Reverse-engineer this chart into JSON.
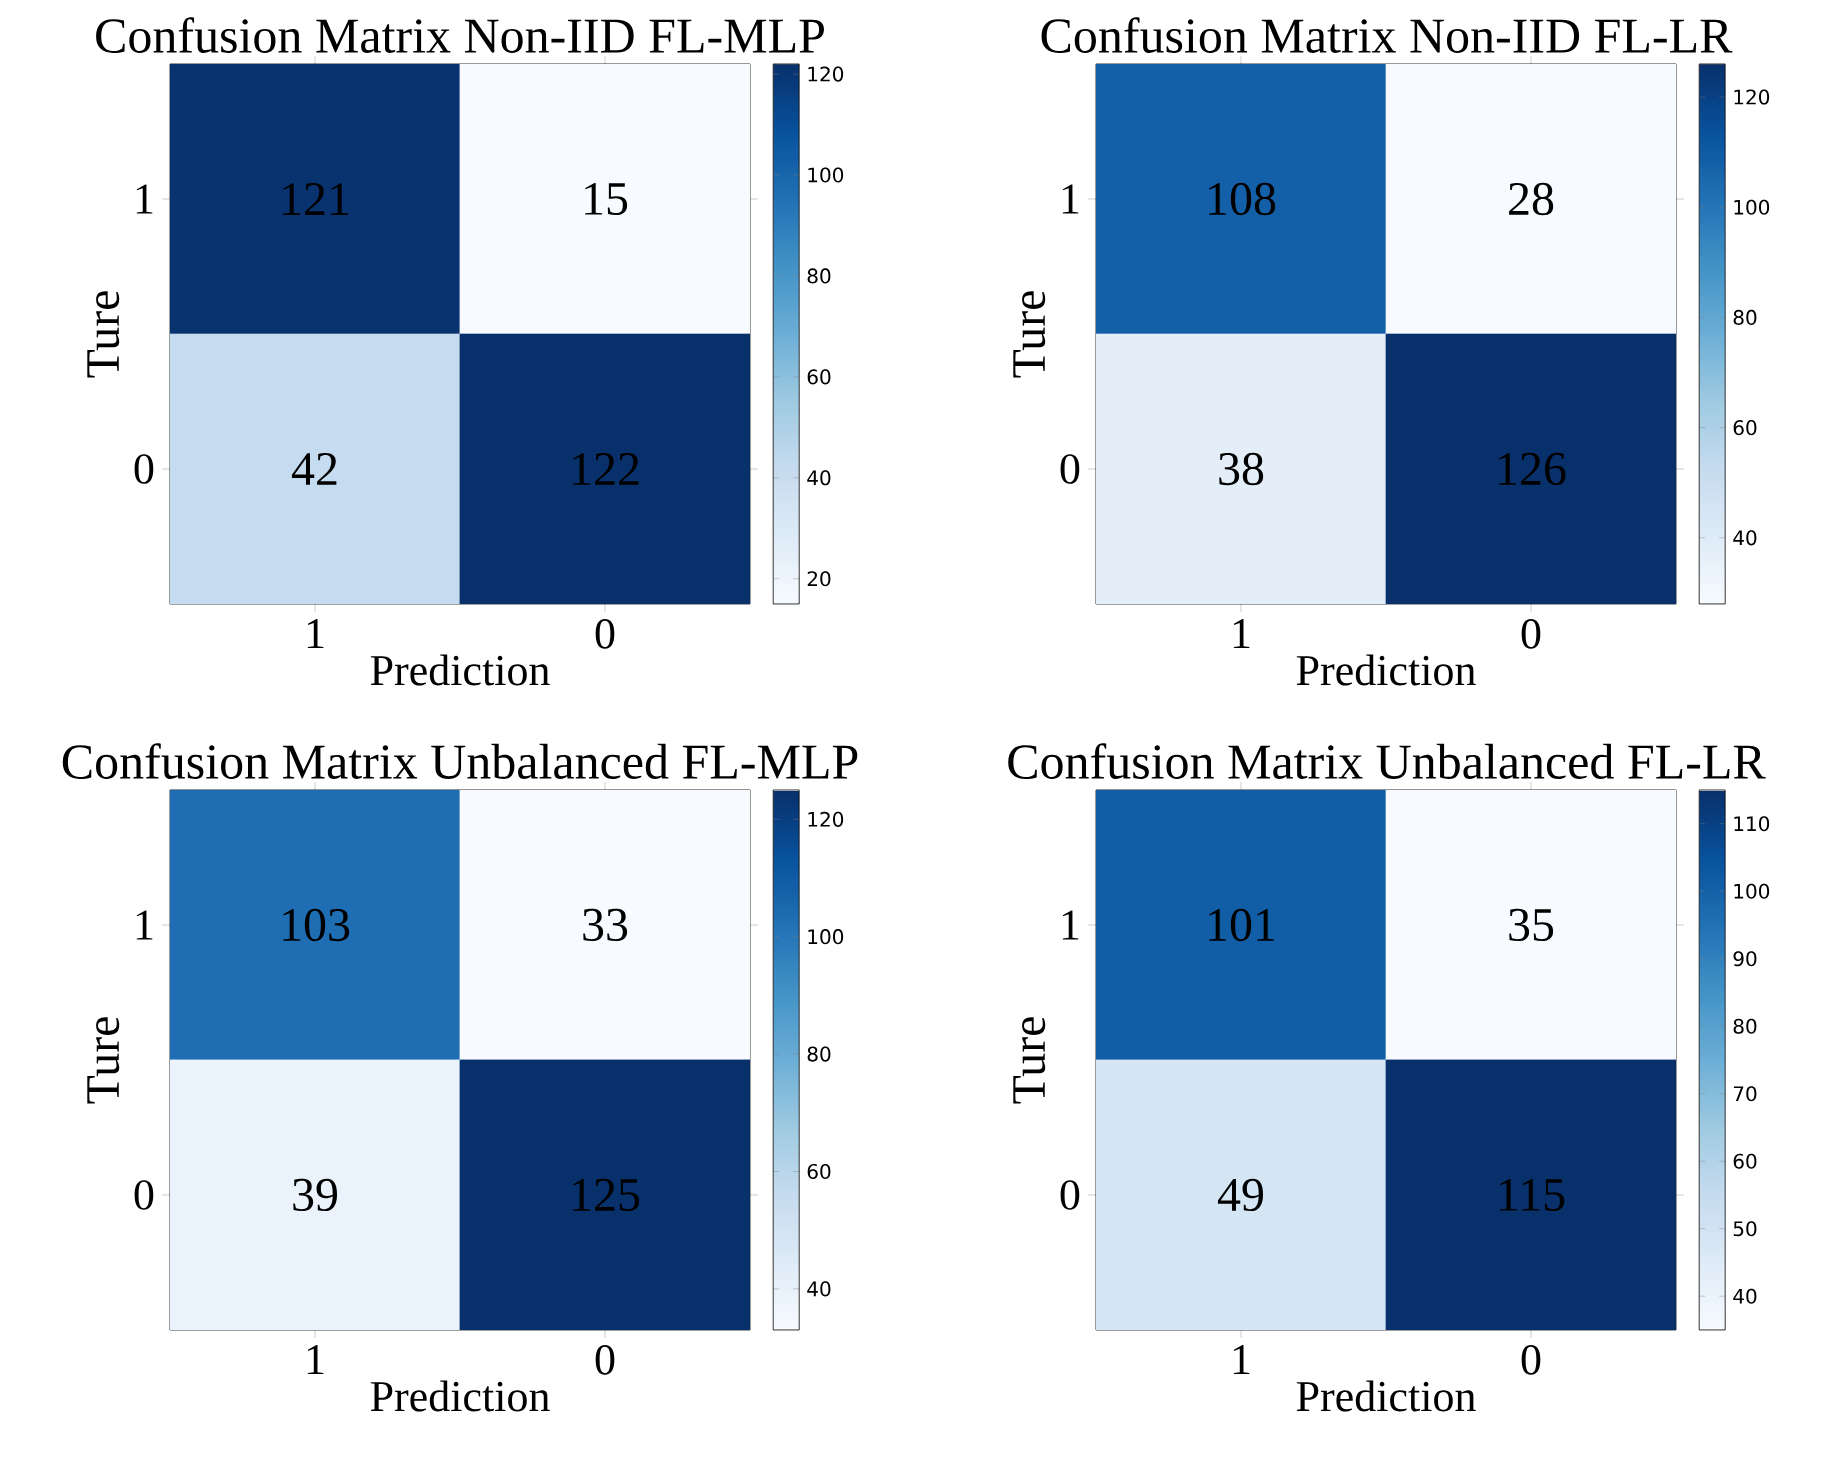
{
  "chart_data": [
    {
      "type": "heatmap",
      "title": "Confusion Matrix Non-IID FL-MLP",
      "xlabel": "Prediction",
      "ylabel": "Ture",
      "categories": [
        "1",
        "0"
      ],
      "y_categories": [
        "1",
        "0"
      ],
      "cells": [
        [
          121,
          15
        ],
        [
          42,
          122
        ]
      ],
      "clim": [
        15,
        122
      ],
      "cticks": [
        20,
        40,
        60,
        80,
        100,
        120
      ],
      "data_labels": true
    },
    {
      "type": "heatmap",
      "title": "Confusion Matrix Non-IID FL-LR",
      "xlabel": "Prediction",
      "ylabel": "Ture",
      "categories": [
        "1",
        "0"
      ],
      "y_categories": [
        "1",
        "0"
      ],
      "cells": [
        [
          108,
          28
        ],
        [
          38,
          126
        ]
      ],
      "clim": [
        28,
        126
      ],
      "cticks": [
        40,
        60,
        80,
        100,
        120
      ],
      "data_labels": true
    },
    {
      "type": "heatmap",
      "title": "Confusion Matrix Unbalanced FL-MLP",
      "xlabel": "Prediction",
      "ylabel": "Ture",
      "categories": [
        "1",
        "0"
      ],
      "y_categories": [
        "1",
        "0"
      ],
      "cells": [
        [
          103,
          33
        ],
        [
          39,
          125
        ]
      ],
      "clim": [
        33,
        125
      ],
      "cticks": [
        40,
        60,
        80,
        100,
        120
      ],
      "data_labels": true
    },
    {
      "type": "heatmap",
      "title": "Confusion Matrix Unbalanced FL-LR",
      "xlabel": "Prediction",
      "ylabel": "Ture",
      "categories": [
        "1",
        "0"
      ],
      "y_categories": [
        "1",
        "0"
      ],
      "cells": [
        [
          101,
          35
        ],
        [
          49,
          115
        ]
      ],
      "clim": [
        35,
        115
      ],
      "cticks": [
        40,
        50,
        60,
        70,
        80,
        90,
        100,
        110
      ],
      "data_labels": true
    }
  ]
}
